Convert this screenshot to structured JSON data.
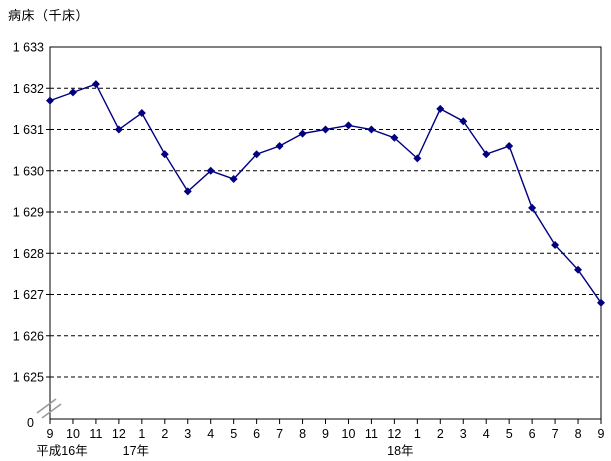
{
  "title": "病床（千床）",
  "chart_data": {
    "type": "line",
    "title": "病床（千床）",
    "ylabel": "病床（千床）",
    "xlabel": "",
    "x_tick_labels": [
      "9",
      "10",
      "11",
      "12",
      "1",
      "2",
      "3",
      "4",
      "5",
      "6",
      "7",
      "8",
      "9",
      "10",
      "11",
      "12",
      "1",
      "2",
      "3",
      "4",
      "5",
      "6",
      "7",
      "8",
      "9"
    ],
    "year_labels": [
      {
        "label": "平成16年",
        "at_index": 0
      },
      {
        "label": "17年",
        "at_index": 4
      },
      {
        "label": "18年",
        "at_index": 16
      }
    ],
    "series": [
      {
        "name": "病床数（千床）",
        "values": [
          1631.7,
          1631.9,
          1632.1,
          1631.0,
          1631.4,
          1630.4,
          1629.5,
          1630.0,
          1629.8,
          1630.4,
          1630.6,
          1630.9,
          1631.0,
          1631.1,
          1631.0,
          1630.8,
          1630.3,
          1631.5,
          1631.2,
          1630.4,
          1630.6,
          1629.1,
          1628.2,
          1627.6,
          1626.8
        ]
      }
    ],
    "y_ticks": [
      1633,
      1632,
      1631,
      1630,
      1629,
      1628,
      1627,
      1626,
      1625
    ],
    "y_tick_labels": [
      "1 633",
      "1 632",
      "1 631",
      "1 630",
      "1 629",
      "1 628",
      "1 627",
      "1 626",
      "1 625"
    ],
    "zero_label": "0",
    "ylim_display": [
      1625,
      1633
    ],
    "axis_break": true,
    "grid": "horizontal-dashed",
    "legend": "none",
    "marker": "diamond",
    "colors": {
      "line": "#000080",
      "marker": "#000080",
      "grid": "#000000",
      "frame": "#000000",
      "text": "#000000",
      "axis_break": "#9a9a9a",
      "background": "#ffffff"
    }
  }
}
